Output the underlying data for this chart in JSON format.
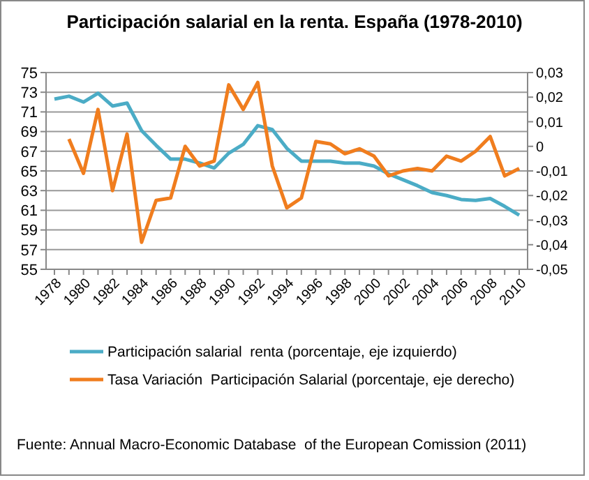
{
  "chart_data": {
    "type": "line",
    "title": "Participación salarial en la renta. España (1978-2010)",
    "categories": [
      "1978",
      null,
      "1980",
      null,
      "1982",
      null,
      "1984",
      null,
      "1986",
      null,
      "1988",
      null,
      "1990",
      null,
      "1992",
      null,
      "1994",
      null,
      "1996",
      null,
      "1998",
      null,
      "2000",
      null,
      "2002",
      null,
      "2004",
      null,
      "2006",
      null,
      "2008",
      null,
      "2010"
    ],
    "series": [
      {
        "name": "Participación salarial  renta (porcentaje, eje izquierdo)",
        "color": "#4bacc6",
        "values": [
          72.3,
          72.6,
          72.0,
          72.9,
          71.6,
          71.9,
          69.1,
          67.6,
          66.2,
          66.2,
          65.8,
          65.3,
          66.8,
          67.7,
          69.6,
          69.2,
          67.3,
          66.0,
          66.0,
          66.0,
          65.8,
          65.8,
          65.5,
          64.7,
          64.1,
          63.5,
          62.8,
          62.5,
          62.1,
          62.0,
          62.2,
          61.4,
          60.5
        ]
      },
      {
        "name": "Tasa Variación  Participación Salarial (porcentaje, eje derecho)",
        "color": "#f07d1e",
        "axis": "y2",
        "values": [
          null,
          0.003,
          -0.011,
          0.015,
          -0.018,
          0.005,
          -0.039,
          -0.022,
          -0.021,
          0.0,
          -0.008,
          -0.006,
          0.025,
          0.015,
          0.026,
          -0.008,
          -0.025,
          -0.021,
          0.002,
          0.001,
          -0.003,
          -0.001,
          -0.004,
          -0.012,
          -0.01,
          -0.009,
          -0.01,
          -0.004,
          -0.006,
          -0.002,
          0.004,
          -0.012,
          -0.009
        ]
      }
    ],
    "ylim": [
      55,
      75
    ],
    "yticks": [
      55,
      57,
      59,
      61,
      63,
      65,
      67,
      69,
      71,
      73,
      75
    ],
    "y2lim": [
      -0.05,
      0.03
    ],
    "y2ticks": [
      {
        "value": -0.05,
        "label": "-0,05"
      },
      {
        "value": -0.04,
        "label": "-0,04"
      },
      {
        "value": -0.03,
        "label": "-0,03"
      },
      {
        "value": -0.02,
        "label": "-0,02"
      },
      {
        "value": -0.01,
        "label": "-0,01"
      },
      {
        "value": 0,
        "label": "0"
      },
      {
        "value": 0.01,
        "label": "0,01"
      },
      {
        "value": 0.02,
        "label": "0,02"
      },
      {
        "value": 0.03,
        "label": "0,03"
      }
    ],
    "grid": "y",
    "legend": "bottom",
    "marker": "none",
    "line_style": "solid",
    "annotations": [
      "Fuente: Annual Macro-Economic Database  of the European Comission (2011)"
    ]
  }
}
